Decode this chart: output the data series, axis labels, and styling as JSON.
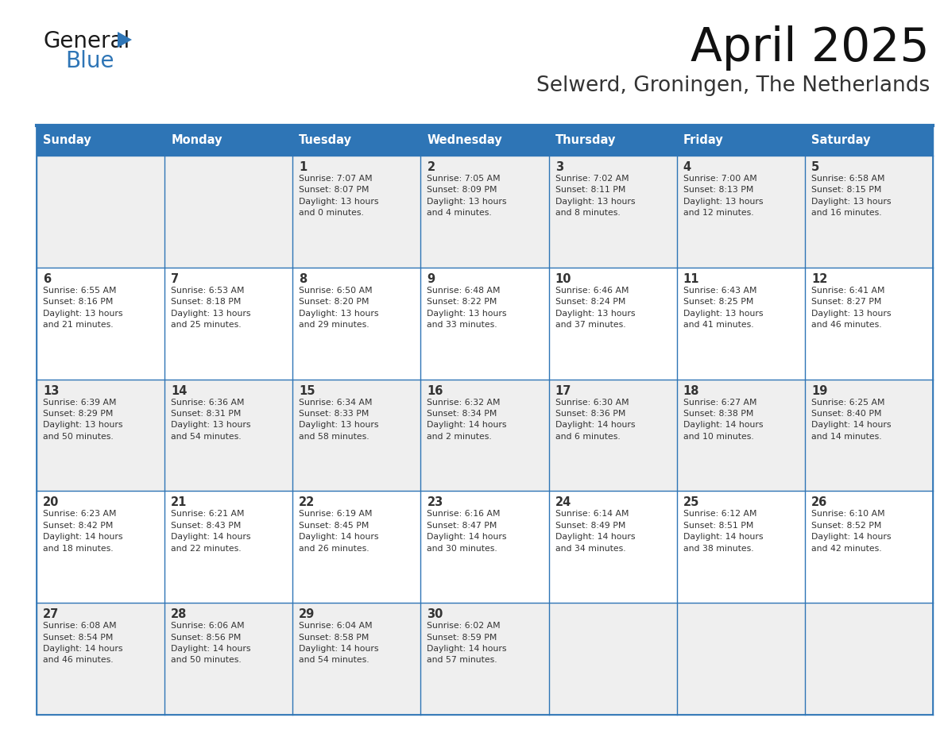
{
  "title": "April 2025",
  "subtitle": "Selwerd, Groningen, The Netherlands",
  "header_bg": "#2E75B6",
  "header_text_color": "#FFFFFF",
  "cell_bg_odd": "#EFEFEF",
  "cell_bg_even": "#FFFFFF",
  "border_color": "#2E75B6",
  "text_color": "#333333",
  "days_of_week": [
    "Sunday",
    "Monday",
    "Tuesday",
    "Wednesday",
    "Thursday",
    "Friday",
    "Saturday"
  ],
  "weeks": [
    [
      {
        "day": "",
        "info": ""
      },
      {
        "day": "",
        "info": ""
      },
      {
        "day": "1",
        "info": "Sunrise: 7:07 AM\nSunset: 8:07 PM\nDaylight: 13 hours\nand 0 minutes."
      },
      {
        "day": "2",
        "info": "Sunrise: 7:05 AM\nSunset: 8:09 PM\nDaylight: 13 hours\nand 4 minutes."
      },
      {
        "day": "3",
        "info": "Sunrise: 7:02 AM\nSunset: 8:11 PM\nDaylight: 13 hours\nand 8 minutes."
      },
      {
        "day": "4",
        "info": "Sunrise: 7:00 AM\nSunset: 8:13 PM\nDaylight: 13 hours\nand 12 minutes."
      },
      {
        "day": "5",
        "info": "Sunrise: 6:58 AM\nSunset: 8:15 PM\nDaylight: 13 hours\nand 16 minutes."
      }
    ],
    [
      {
        "day": "6",
        "info": "Sunrise: 6:55 AM\nSunset: 8:16 PM\nDaylight: 13 hours\nand 21 minutes."
      },
      {
        "day": "7",
        "info": "Sunrise: 6:53 AM\nSunset: 8:18 PM\nDaylight: 13 hours\nand 25 minutes."
      },
      {
        "day": "8",
        "info": "Sunrise: 6:50 AM\nSunset: 8:20 PM\nDaylight: 13 hours\nand 29 minutes."
      },
      {
        "day": "9",
        "info": "Sunrise: 6:48 AM\nSunset: 8:22 PM\nDaylight: 13 hours\nand 33 minutes."
      },
      {
        "day": "10",
        "info": "Sunrise: 6:46 AM\nSunset: 8:24 PM\nDaylight: 13 hours\nand 37 minutes."
      },
      {
        "day": "11",
        "info": "Sunrise: 6:43 AM\nSunset: 8:25 PM\nDaylight: 13 hours\nand 41 minutes."
      },
      {
        "day": "12",
        "info": "Sunrise: 6:41 AM\nSunset: 8:27 PM\nDaylight: 13 hours\nand 46 minutes."
      }
    ],
    [
      {
        "day": "13",
        "info": "Sunrise: 6:39 AM\nSunset: 8:29 PM\nDaylight: 13 hours\nand 50 minutes."
      },
      {
        "day": "14",
        "info": "Sunrise: 6:36 AM\nSunset: 8:31 PM\nDaylight: 13 hours\nand 54 minutes."
      },
      {
        "day": "15",
        "info": "Sunrise: 6:34 AM\nSunset: 8:33 PM\nDaylight: 13 hours\nand 58 minutes."
      },
      {
        "day": "16",
        "info": "Sunrise: 6:32 AM\nSunset: 8:34 PM\nDaylight: 14 hours\nand 2 minutes."
      },
      {
        "day": "17",
        "info": "Sunrise: 6:30 AM\nSunset: 8:36 PM\nDaylight: 14 hours\nand 6 minutes."
      },
      {
        "day": "18",
        "info": "Sunrise: 6:27 AM\nSunset: 8:38 PM\nDaylight: 14 hours\nand 10 minutes."
      },
      {
        "day": "19",
        "info": "Sunrise: 6:25 AM\nSunset: 8:40 PM\nDaylight: 14 hours\nand 14 minutes."
      }
    ],
    [
      {
        "day": "20",
        "info": "Sunrise: 6:23 AM\nSunset: 8:42 PM\nDaylight: 14 hours\nand 18 minutes."
      },
      {
        "day": "21",
        "info": "Sunrise: 6:21 AM\nSunset: 8:43 PM\nDaylight: 14 hours\nand 22 minutes."
      },
      {
        "day": "22",
        "info": "Sunrise: 6:19 AM\nSunset: 8:45 PM\nDaylight: 14 hours\nand 26 minutes."
      },
      {
        "day": "23",
        "info": "Sunrise: 6:16 AM\nSunset: 8:47 PM\nDaylight: 14 hours\nand 30 minutes."
      },
      {
        "day": "24",
        "info": "Sunrise: 6:14 AM\nSunset: 8:49 PM\nDaylight: 14 hours\nand 34 minutes."
      },
      {
        "day": "25",
        "info": "Sunrise: 6:12 AM\nSunset: 8:51 PM\nDaylight: 14 hours\nand 38 minutes."
      },
      {
        "day": "26",
        "info": "Sunrise: 6:10 AM\nSunset: 8:52 PM\nDaylight: 14 hours\nand 42 minutes."
      }
    ],
    [
      {
        "day": "27",
        "info": "Sunrise: 6:08 AM\nSunset: 8:54 PM\nDaylight: 14 hours\nand 46 minutes."
      },
      {
        "day": "28",
        "info": "Sunrise: 6:06 AM\nSunset: 8:56 PM\nDaylight: 14 hours\nand 50 minutes."
      },
      {
        "day": "29",
        "info": "Sunrise: 6:04 AM\nSunset: 8:58 PM\nDaylight: 14 hours\nand 54 minutes."
      },
      {
        "day": "30",
        "info": "Sunrise: 6:02 AM\nSunset: 8:59 PM\nDaylight: 14 hours\nand 57 minutes."
      },
      {
        "day": "",
        "info": ""
      },
      {
        "day": "",
        "info": ""
      },
      {
        "day": "",
        "info": ""
      }
    ]
  ],
  "logo_color_general": "#1a1a1a",
  "logo_color_blue": "#2E75B6",
  "logo_triangle_color": "#2E75B6",
  "fig_width": 11.88,
  "fig_height": 9.18,
  "dpi": 100
}
